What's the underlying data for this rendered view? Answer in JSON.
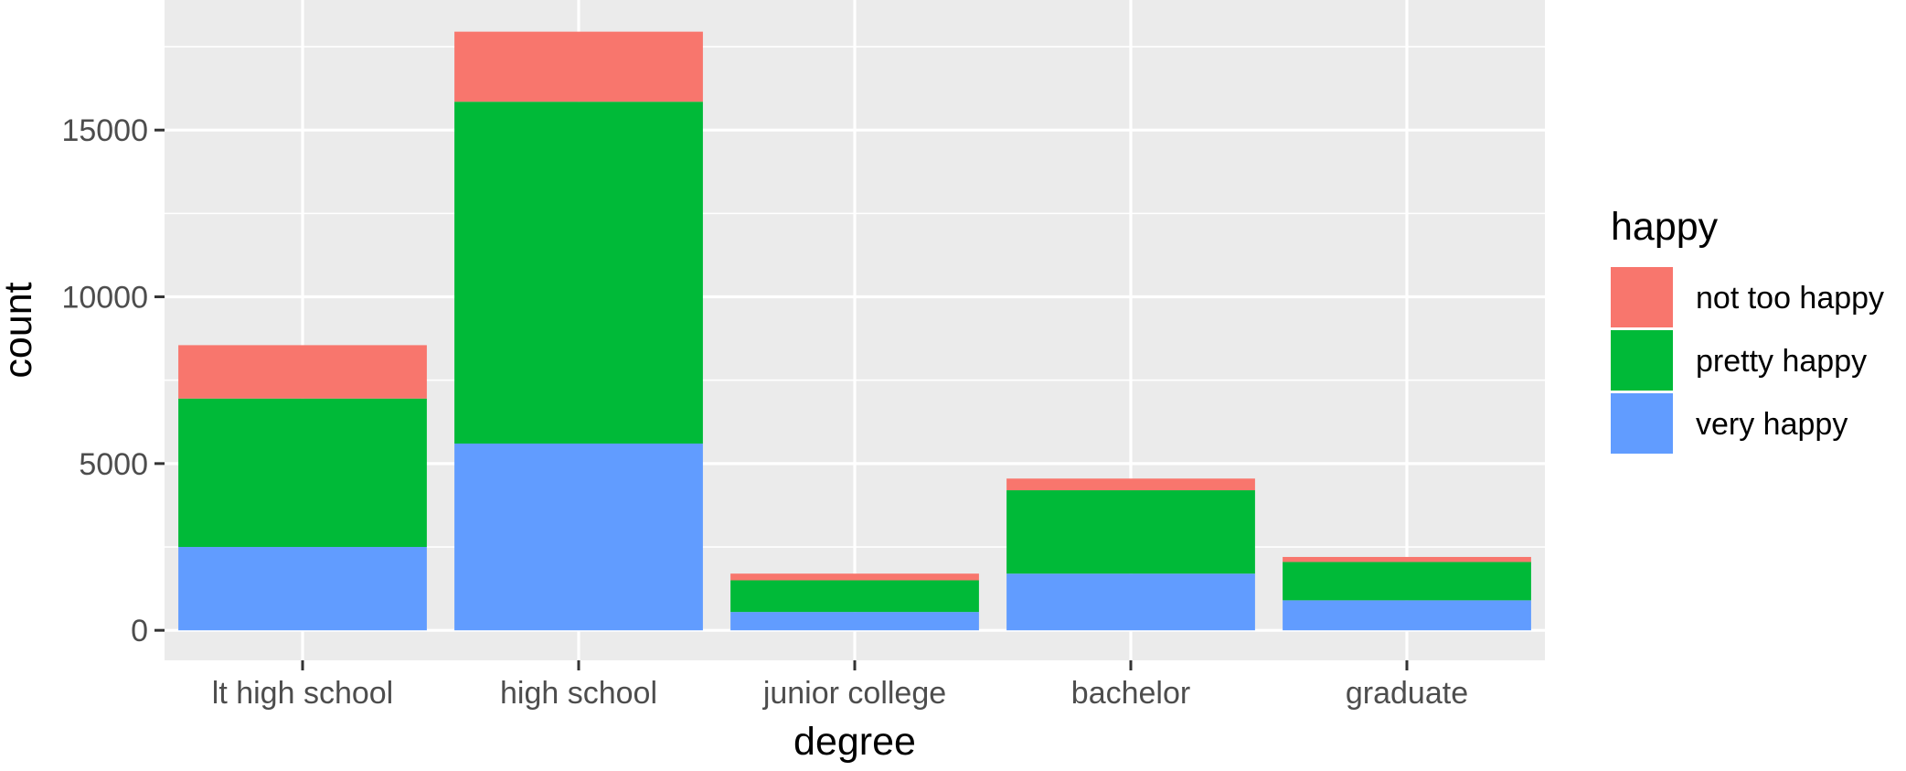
{
  "chart_data": {
    "type": "bar",
    "stacked": true,
    "categories": [
      "lt high school",
      "high school",
      "junior college",
      "bachelor",
      "graduate"
    ],
    "series": [
      {
        "name": "not too happy",
        "color": "#F8766D",
        "values": [
          1600,
          2100,
          200,
          350,
          150
        ]
      },
      {
        "name": "pretty happy",
        "color": "#00BA38",
        "values": [
          4450,
          10250,
          950,
          2500,
          1150
        ]
      },
      {
        "name": "very happy",
        "color": "#619CFF",
        "values": [
          2500,
          5600,
          550,
          1700,
          900
        ]
      }
    ],
    "xlabel": "degree",
    "ylabel": "count",
    "ylim": [
      -900,
      18900
    ],
    "yticks": [
      0,
      5000,
      10000,
      15000
    ],
    "legend": {
      "title": "happy",
      "position": "right"
    },
    "grid": true,
    "panel_background": "#EBEBEB",
    "grid_color": "#FFFFFF"
  }
}
